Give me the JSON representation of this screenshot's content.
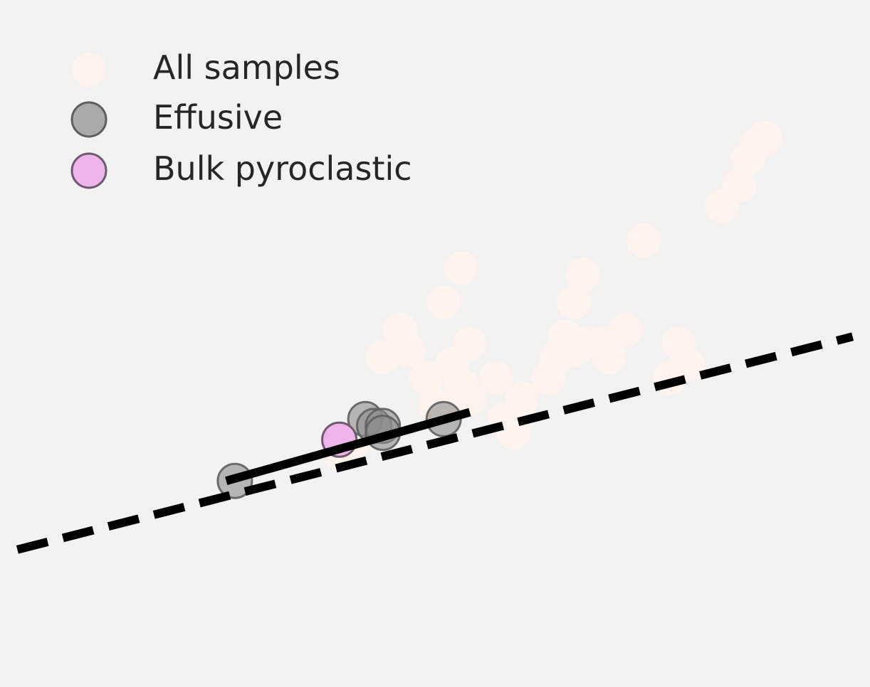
{
  "chart_data": {
    "type": "scatter",
    "title": "",
    "xlabel": "",
    "ylabel": "",
    "background": "#f2f2f2",
    "grid": false,
    "axes_visible": false,
    "legend_placement": "top-left",
    "xlim": [
      0,
      1
    ],
    "ylim": [
      0,
      1
    ],
    "legend": [
      {
        "label": "All samples",
        "series": "all"
      },
      {
        "label": "Effusive",
        "series": "effusive"
      },
      {
        "label": "Bulk pyroclastic",
        "series": "pyroclastic"
      }
    ],
    "series": [
      {
        "id": "all",
        "name": "All samples",
        "color": "#fff3ec",
        "edge": "none",
        "opacity": 0.9,
        "points": [
          {
            "x": 0.46,
            "y": 0.52
          },
          {
            "x": 0.47,
            "y": 0.49
          },
          {
            "x": 0.44,
            "y": 0.48
          },
          {
            "x": 0.49,
            "y": 0.45
          },
          {
            "x": 0.52,
            "y": 0.47
          },
          {
            "x": 0.54,
            "y": 0.5
          },
          {
            "x": 0.53,
            "y": 0.44
          },
          {
            "x": 0.5,
            "y": 0.41
          },
          {
            "x": 0.52,
            "y": 0.41
          },
          {
            "x": 0.54,
            "y": 0.42
          },
          {
            "x": 0.51,
            "y": 0.56
          },
          {
            "x": 0.53,
            "y": 0.61
          },
          {
            "x": 0.57,
            "y": 0.45
          },
          {
            "x": 0.58,
            "y": 0.39
          },
          {
            "x": 0.59,
            "y": 0.37
          },
          {
            "x": 0.6,
            "y": 0.42
          },
          {
            "x": 0.63,
            "y": 0.45
          },
          {
            "x": 0.64,
            "y": 0.48
          },
          {
            "x": 0.65,
            "y": 0.51
          },
          {
            "x": 0.66,
            "y": 0.49
          },
          {
            "x": 0.67,
            "y": 0.5
          },
          {
            "x": 0.69,
            "y": 0.5
          },
          {
            "x": 0.7,
            "y": 0.48
          },
          {
            "x": 0.66,
            "y": 0.56
          },
          {
            "x": 0.67,
            "y": 0.6
          },
          {
            "x": 0.72,
            "y": 0.52
          },
          {
            "x": 0.74,
            "y": 0.65
          },
          {
            "x": 0.77,
            "y": 0.45
          },
          {
            "x": 0.78,
            "y": 0.5
          },
          {
            "x": 0.79,
            "y": 0.47
          },
          {
            "x": 0.83,
            "y": 0.7
          },
          {
            "x": 0.85,
            "y": 0.73
          },
          {
            "x": 0.86,
            "y": 0.77
          },
          {
            "x": 0.87,
            "y": 0.79
          },
          {
            "x": 0.88,
            "y": 0.8
          },
          {
            "x": 0.39,
            "y": 0.34
          },
          {
            "x": 0.41,
            "y": 0.36
          }
        ]
      },
      {
        "id": "effusive",
        "name": "Effusive",
        "color": "#8c8c8c",
        "edge": "#5f5f5f",
        "opacity": 0.6,
        "points": [
          {
            "x": 0.27,
            "y": 0.3
          },
          {
            "x": 0.42,
            "y": 0.39
          },
          {
            "x": 0.43,
            "y": 0.38
          },
          {
            "x": 0.44,
            "y": 0.38
          },
          {
            "x": 0.44,
            "y": 0.37
          },
          {
            "x": 0.51,
            "y": 0.39
          }
        ]
      },
      {
        "id": "pyroclastic",
        "name": "Bulk pyroclastic",
        "color": "#f0b4ec",
        "edge": "#6e5a6e",
        "opacity": 1,
        "points": [
          {
            "x": 0.39,
            "y": 0.36
          }
        ]
      }
    ],
    "lines": [
      {
        "id": "fit-dashed",
        "style": "dashed",
        "color": "#000000",
        "points": [
          {
            "x": 0.02,
            "y": 0.2
          },
          {
            "x": 0.98,
            "y": 0.51
          }
        ]
      },
      {
        "id": "fit-solid",
        "style": "solid",
        "color": "#000000",
        "points": [
          {
            "x": 0.26,
            "y": 0.3
          },
          {
            "x": 0.54,
            "y": 0.4
          }
        ]
      }
    ]
  }
}
